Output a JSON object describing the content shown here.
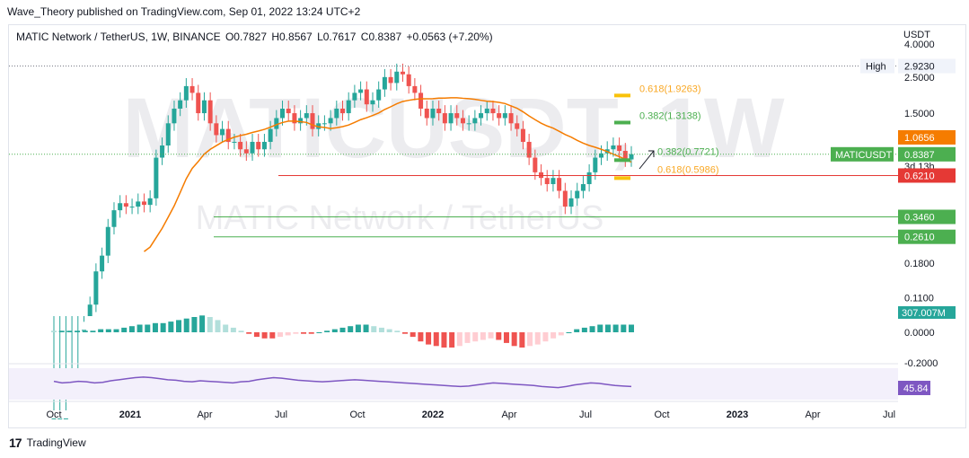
{
  "header": {
    "publisher": "Wave_Theory published on TradingView.com, Sep 01, 2022 13:24 UTC+2"
  },
  "symbol": {
    "name": "MATIC Network / TetherUS, 1W, BINANCE",
    "open": "O0.7827",
    "high": "H0.8567",
    "low": "L0.7617",
    "close": "C0.8387",
    "change": "+0.0563 (+7.20%)"
  },
  "currency": "USDT",
  "watermark": {
    "symbol": "MATICUSDT, 1W",
    "name": "MATIC Network / TetherUS"
  },
  "chart_data": {
    "type": "candlestick",
    "scale": "log",
    "price_axis_ticks": [
      "4.0000",
      "2.5000",
      "1.5000",
      "0.1800",
      "0.1100"
    ],
    "price_axis_tick_values": [
      4.0,
      2.5,
      1.5,
      0.18,
      0.11
    ],
    "time_axis_ticks": [
      "Oct",
      "2021",
      "Apr",
      "Jul",
      "Oct",
      "2022",
      "Apr",
      "Jul",
      "Oct",
      "2023",
      "Apr",
      "Jul"
    ],
    "candles_close_approx": [
      0.02,
      0.02,
      0.02,
      0.03,
      0.03,
      0.07,
      0.1,
      0.16,
      0.2,
      0.3,
      0.38,
      0.42,
      0.4,
      0.4,
      0.43,
      0.41,
      0.45,
      0.8,
      0.95,
      1.3,
      1.6,
      1.8,
      2.2,
      2.0,
      1.5,
      1.8,
      1.3,
      1.1,
      1.2,
      1.0,
      1.0,
      0.9,
      0.85,
      1.0,
      0.9,
      1.0,
      1.2,
      1.4,
      1.6,
      1.5,
      1.3,
      1.4,
      1.5,
      1.2,
      1.3,
      1.3,
      1.4,
      1.6,
      1.5,
      1.8,
      2.0,
      2.1,
      1.7,
      1.8,
      2.1,
      2.5,
      2.3,
      2.7,
      2.6,
      2.2,
      2.0,
      1.6,
      1.4,
      1.6,
      1.5,
      1.3,
      1.5,
      1.4,
      1.3,
      1.3,
      1.4,
      1.5,
      1.6,
      1.5,
      1.4,
      1.5,
      1.3,
      1.2,
      1.0,
      0.8,
      0.65,
      0.6,
      0.55,
      0.6,
      0.5,
      0.4,
      0.45,
      0.5,
      0.55,
      0.65,
      0.8,
      0.85,
      0.9,
      0.95,
      0.88,
      0.78,
      0.84
    ],
    "moving_average_label": "1.0656",
    "levels": [
      {
        "label": "High",
        "value": "2.9230",
        "color": "#787b86"
      },
      {
        "label": "",
        "value": "1.0656",
        "color": "#f57c00"
      },
      {
        "label": "MATICUSDT",
        "value": "0.8387",
        "sub": "3d 13h",
        "color": "#4caf50"
      },
      {
        "label": "",
        "value": "0.6210",
        "color": "#e53935"
      },
      {
        "label": "",
        "value": "0.3460",
        "color": "#4caf50"
      },
      {
        "label": "",
        "value": "0.2610",
        "color": "#4caf50"
      }
    ],
    "fib_labels": [
      "0.618(1.9263)",
      "0.382(1.3138)",
      "0.382(0.7721)",
      "0.618(0.5986)"
    ],
    "volume_label": "307.007M",
    "macd": {
      "ticks": [
        "0.0000",
        "-0.2000"
      ],
      "tick_values": [
        0.0,
        -0.2
      ],
      "histogram": [
        0.01,
        0.01,
        0.01,
        0.01,
        0.01,
        0.01,
        0.02,
        0.02,
        0.02,
        0.03,
        0.04,
        0.05,
        0.05,
        0.06,
        0.06,
        0.07,
        0.08,
        0.09,
        0.1,
        0.11,
        0.1,
        0.08,
        0.05,
        0.03,
        0.01,
        -0.01,
        -0.03,
        -0.04,
        -0.04,
        -0.03,
        -0.02,
        -0.01,
        -0.01,
        -0.01,
        0.0,
        0.01,
        0.02,
        0.03,
        0.04,
        0.05,
        0.05,
        0.04,
        0.03,
        0.02,
        0.01,
        -0.01,
        -0.03,
        -0.06,
        -0.08,
        -0.09,
        -0.1,
        -0.1,
        -0.09,
        -0.07,
        -0.06,
        -0.05,
        -0.04,
        -0.05,
        -0.07,
        -0.09,
        -0.1,
        -0.09,
        -0.08,
        -0.06,
        -0.04,
        -0.02,
        0.0,
        0.02,
        0.03,
        0.04,
        0.05,
        0.05,
        0.05,
        0.05,
        0.05
      ]
    },
    "rsi": {
      "value": "45.84",
      "values": [
        55,
        52,
        53,
        55,
        54,
        52,
        53,
        56,
        58,
        60,
        62,
        63,
        62,
        60,
        58,
        57,
        55,
        54,
        56,
        55,
        54,
        53,
        52,
        54,
        55,
        58,
        60,
        62,
        61,
        59,
        57,
        56,
        55,
        54,
        55,
        56,
        57,
        58,
        57,
        56,
        55,
        54,
        53,
        52,
        51,
        50,
        49,
        48,
        47,
        46,
        45,
        46,
        48,
        50,
        52,
        51,
        50,
        49,
        48,
        47,
        45,
        44,
        43,
        45,
        48,
        50,
        52,
        51,
        49,
        47,
        46,
        45
      ]
    }
  },
  "footer": {
    "brand": "TradingView"
  }
}
